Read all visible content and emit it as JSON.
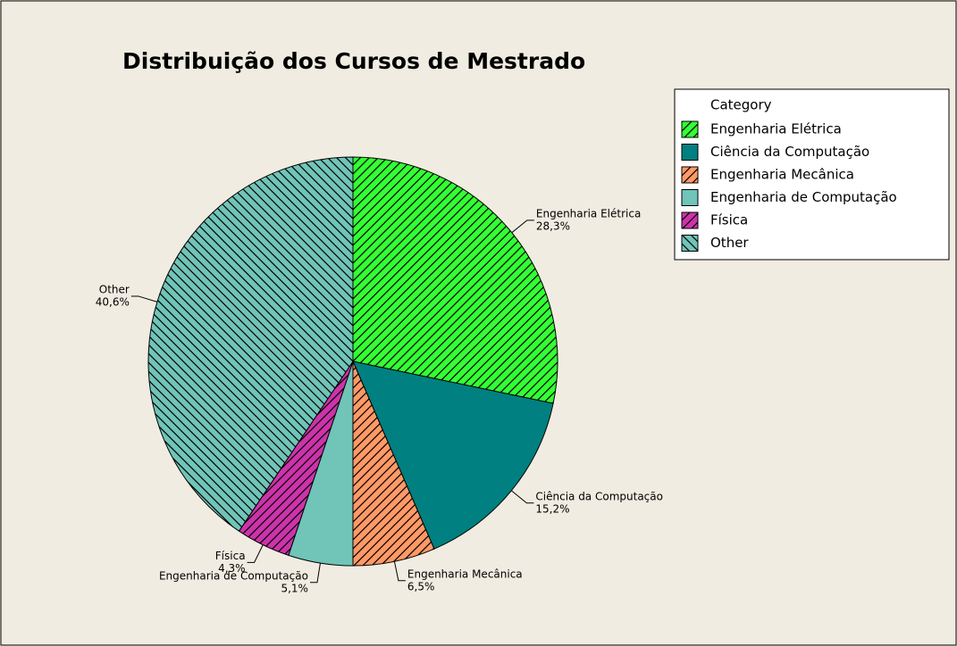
{
  "chart_data": {
    "type": "pie",
    "title": "Distribuição dos Cursos de Mestrado",
    "legend_title": "Category",
    "categories": [
      "Engenharia Elétrica",
      "Ciência da Computação",
      "Engenharia Mecânica",
      "Engenharia de Computação",
      "Física",
      "Other"
    ],
    "values": [
      28.3,
      15.2,
      6.5,
      5.1,
      4.3,
      40.6
    ],
    "value_labels": [
      "28,3%",
      "15,2%",
      "6,5%",
      "5,1%",
      "4,3%",
      "40,6%"
    ],
    "colors": [
      "#33ff33",
      "#008080",
      "#ff9966",
      "#70c4b8",
      "#cc33aa",
      "#70c4b8"
    ],
    "hatches": [
      "/",
      null,
      "/",
      null,
      "/",
      "\\"
    ],
    "legend": "upper-right"
  }
}
